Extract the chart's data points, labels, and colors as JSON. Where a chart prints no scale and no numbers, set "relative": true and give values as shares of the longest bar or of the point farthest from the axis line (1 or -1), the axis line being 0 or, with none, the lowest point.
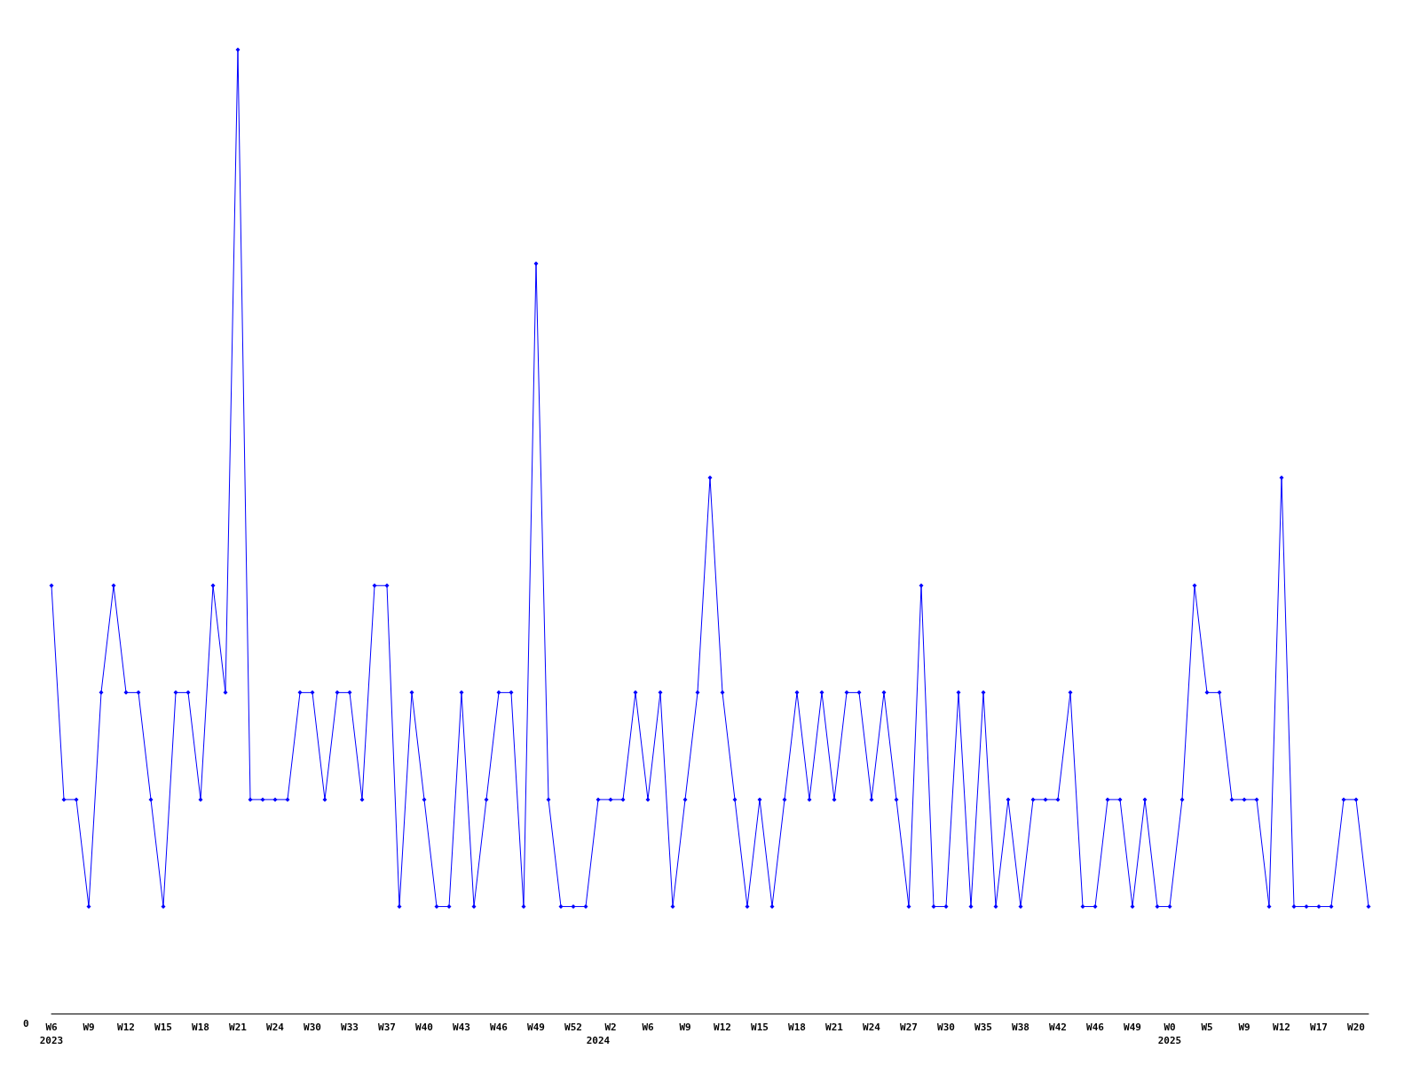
{
  "chart_data": {
    "type": "line",
    "relative": true,
    "color": "#0000ff",
    "marker": "diamond",
    "grid": false,
    "categories": [
      "W6\n2023",
      null,
      null,
      "W9",
      null,
      null,
      "W12",
      null,
      null,
      "W15",
      null,
      null,
      "W18",
      null,
      null,
      "W21",
      null,
      null,
      "W24",
      null,
      null,
      "W30",
      null,
      null,
      "W33",
      null,
      null,
      "W37",
      null,
      null,
      "W40",
      null,
      null,
      "W43",
      null,
      null,
      "W46",
      null,
      null,
      "W49",
      null,
      null,
      "W52",
      null,
      "\n2024",
      "W2",
      null,
      null,
      "W6",
      null,
      null,
      "W9",
      null,
      null,
      "W12",
      null,
      null,
      "W15",
      null,
      null,
      "W18",
      null,
      null,
      "W21",
      null,
      null,
      "W24",
      null,
      null,
      "W27",
      null,
      null,
      "W30",
      null,
      null,
      "W35",
      null,
      null,
      "W38",
      null,
      null,
      "W42",
      null,
      null,
      "W46",
      null,
      null,
      "W49",
      null,
      null,
      "W0\n2025",
      null,
      null,
      "W5",
      null,
      null,
      "W9",
      null,
      null,
      "W12",
      null,
      null,
      "W17",
      null,
      null,
      "W20",
      null
    ],
    "values": [
      0.444,
      0.222,
      0.222,
      0.111,
      0.333,
      0.444,
      0.333,
      0.333,
      0.222,
      0.111,
      0.333,
      0.333,
      0.222,
      0.444,
      0.333,
      1,
      0.222,
      0.222,
      0.222,
      0.222,
      0.333,
      0.333,
      0.222,
      0.333,
      0.333,
      0.222,
      0.444,
      0.444,
      0.111,
      0.333,
      0.222,
      0.111,
      0.111,
      0.333,
      0.111,
      0.222,
      0.333,
      0.333,
      0.111,
      0.778,
      0.222,
      0.111,
      0.111,
      0.111,
      0.222,
      0.222,
      0.222,
      0.333,
      0.222,
      0.333,
      0.111,
      0.222,
      0.333,
      0.556,
      0.333,
      0.222,
      0.111,
      0.222,
      0.111,
      0.222,
      0.333,
      0.222,
      0.333,
      0.222,
      0.333,
      0.333,
      0.222,
      0.333,
      0.222,
      0.111,
      0.444,
      0.111,
      0.111,
      0.333,
      0.111,
      0.333,
      0.111,
      0.222,
      0.111,
      0.222,
      0.222,
      0.222,
      0.333,
      0.111,
      0.111,
      0.222,
      0.222,
      0.111,
      0.222,
      0.111,
      0.111,
      0.222,
      0.444,
      0.333,
      0.333,
      0.222,
      0.222,
      0.222,
      0.111,
      0.556,
      0.111,
      0.111,
      0.111,
      0.111,
      0.222,
      0.222,
      0.111
    ],
    "annotations": [
      "0"
    ]
  }
}
